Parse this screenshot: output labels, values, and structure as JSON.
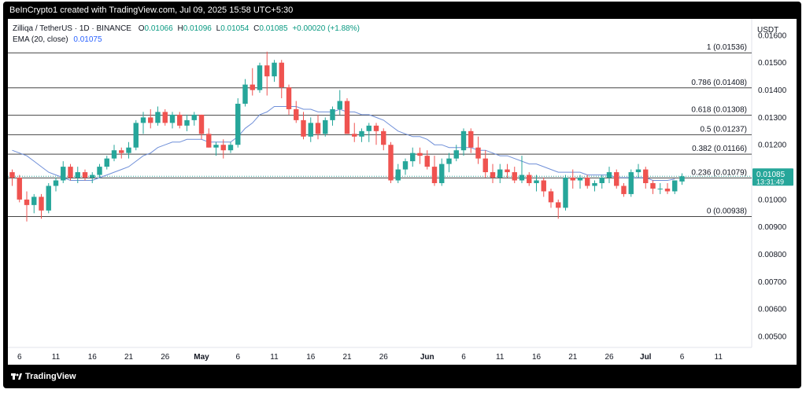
{
  "header": {
    "caption": "BeInCrypto1 created with TradingView.com, Jul 09, 2025 15:58 UTC+5:30"
  },
  "legend": {
    "symbol": "Zilliqa / TetherUS · 1D · BINANCE",
    "open_label": "O",
    "open": "0.01066",
    "high_label": "H",
    "high": "0.01096",
    "low_label": "L",
    "low": "0.01054",
    "close_label": "C",
    "close": "0.01085",
    "change": "+0.00020 (+1.88%)",
    "ema_label": "EMA (20, close)",
    "ema_value": "0.01075"
  },
  "footer": {
    "brand": "TradingView"
  },
  "colors": {
    "up": "#26a69a",
    "down": "#ef5350",
    "ema": "#6f8fd8",
    "price_tag": "#26a69a",
    "fib": "#444444"
  },
  "chart_data": {
    "type": "candlestick",
    "currency": "USDT",
    "ylim": [
      0.0046,
      0.0166
    ],
    "y_ticks": [
      "0.01600",
      "0.01500",
      "0.01400",
      "0.01300",
      "0.01200",
      "0.01100",
      "0.01000",
      "0.00900",
      "0.00800",
      "0.00700",
      "0.00600",
      "0.00500"
    ],
    "y_tick_values": [
      0.016,
      0.015,
      0.014,
      0.013,
      0.012,
      0.011,
      0.01,
      0.009,
      0.008,
      0.007,
      0.006,
      0.005
    ],
    "x_labels": [
      {
        "label": "6",
        "i": 1
      },
      {
        "label": "11",
        "i": 6
      },
      {
        "label": "16",
        "i": 11
      },
      {
        "label": "21",
        "i": 16
      },
      {
        "label": "26",
        "i": 21
      },
      {
        "label": "May",
        "i": 26
      },
      {
        "label": "6",
        "i": 31
      },
      {
        "label": "11",
        "i": 36
      },
      {
        "label": "16",
        "i": 41
      },
      {
        "label": "21",
        "i": 46
      },
      {
        "label": "26",
        "i": 51
      },
      {
        "label": "Jun",
        "i": 57
      },
      {
        "label": "6",
        "i": 62
      },
      {
        "label": "11",
        "i": 67
      },
      {
        "label": "16",
        "i": 72
      },
      {
        "label": "21",
        "i": 77
      },
      {
        "label": "26",
        "i": 82
      },
      {
        "label": "Jul",
        "i": 87
      },
      {
        "label": "6",
        "i": 92
      },
      {
        "label": "11",
        "i": 97
      }
    ],
    "bold_labels": [
      "May",
      "Jun",
      "Jul"
    ],
    "fib_levels": [
      {
        "ratio": "1",
        "price": "0.01536",
        "value": 0.01536
      },
      {
        "ratio": "0.786",
        "price": "0.01408",
        "value": 0.01408
      },
      {
        "ratio": "0.618",
        "price": "0.01308",
        "value": 0.01308
      },
      {
        "ratio": "0.5",
        "price": "0.01237",
        "value": 0.01237
      },
      {
        "ratio": "0.382",
        "price": "0.01166",
        "value": 0.01166
      },
      {
        "ratio": "0.236",
        "price": "0.01079",
        "value": 0.01079
      },
      {
        "ratio": "0",
        "price": "0.00938",
        "value": 0.00938
      }
    ],
    "current_price": {
      "value": 0.01085,
      "label": "0.01085",
      "countdown": "13:31:49"
    },
    "candles": [
      [
        0.011,
        0.0111,
        0.0105,
        0.0108
      ],
      [
        0.0108,
        0.0109,
        0.0099,
        0.01
      ],
      [
        0.01,
        0.0103,
        0.0092,
        0.0098
      ],
      [
        0.0098,
        0.0102,
        0.0095,
        0.0101
      ],
      [
        0.0101,
        0.0102,
        0.0093,
        0.0096
      ],
      [
        0.0096,
        0.0106,
        0.0095,
        0.0105
      ],
      [
        0.0105,
        0.0108,
        0.0103,
        0.0107
      ],
      [
        0.0107,
        0.0114,
        0.0106,
        0.0112
      ],
      [
        0.0112,
        0.0113,
        0.0107,
        0.0108
      ],
      [
        0.0108,
        0.0112,
        0.0106,
        0.011
      ],
      [
        0.011,
        0.0111,
        0.0107,
        0.0108
      ],
      [
        0.0108,
        0.011,
        0.0106,
        0.0109
      ],
      [
        0.0109,
        0.0113,
        0.0108,
        0.0112
      ],
      [
        0.0112,
        0.0116,
        0.0111,
        0.0115
      ],
      [
        0.0115,
        0.012,
        0.0114,
        0.0118
      ],
      [
        0.0118,
        0.0119,
        0.0115,
        0.0117
      ],
      [
        0.0117,
        0.0121,
        0.0115,
        0.0119
      ],
      [
        0.0119,
        0.0129,
        0.0118,
        0.0128
      ],
      [
        0.0128,
        0.0132,
        0.0124,
        0.013
      ],
      [
        0.013,
        0.0133,
        0.0126,
        0.0128
      ],
      [
        0.0128,
        0.0134,
        0.0127,
        0.0132
      ],
      [
        0.0132,
        0.0133,
        0.0127,
        0.0128
      ],
      [
        0.0128,
        0.0132,
        0.0126,
        0.0131
      ],
      [
        0.0131,
        0.0132,
        0.0126,
        0.0127
      ],
      [
        0.0127,
        0.0131,
        0.0125,
        0.0129
      ],
      [
        0.0129,
        0.0132,
        0.0127,
        0.0131
      ],
      [
        0.0131,
        0.0131,
        0.0122,
        0.0124
      ],
      [
        0.0124,
        0.0126,
        0.0119,
        0.0119
      ],
      [
        0.0119,
        0.0121,
        0.0116,
        0.012
      ],
      [
        0.012,
        0.0122,
        0.0115,
        0.0118
      ],
      [
        0.0118,
        0.0121,
        0.0117,
        0.012
      ],
      [
        0.012,
        0.0137,
        0.0119,
        0.0135
      ],
      [
        0.0135,
        0.0144,
        0.0134,
        0.0142
      ],
      [
        0.0142,
        0.0148,
        0.0138,
        0.014
      ],
      [
        0.014,
        0.015,
        0.0139,
        0.0149
      ],
      [
        0.0149,
        0.0154,
        0.0138,
        0.0145
      ],
      [
        0.0145,
        0.0151,
        0.0143,
        0.015
      ],
      [
        0.015,
        0.0151,
        0.0137,
        0.0141
      ],
      [
        0.0141,
        0.0142,
        0.0131,
        0.0133
      ],
      [
        0.0133,
        0.0136,
        0.0128,
        0.0129
      ],
      [
        0.0129,
        0.0132,
        0.0122,
        0.0123
      ],
      [
        0.0123,
        0.013,
        0.0121,
        0.0128
      ],
      [
        0.0128,
        0.0131,
        0.0122,
        0.0124
      ],
      [
        0.0124,
        0.013,
        0.0123,
        0.0129
      ],
      [
        0.0129,
        0.0134,
        0.0127,
        0.0133
      ],
      [
        0.0133,
        0.014,
        0.0131,
        0.0136
      ],
      [
        0.0136,
        0.0137,
        0.0125,
        0.0124
      ],
      [
        0.0124,
        0.0128,
        0.0121,
        0.0123
      ],
      [
        0.0123,
        0.0126,
        0.0121,
        0.0125
      ],
      [
        0.0125,
        0.0128,
        0.0121,
        0.0127
      ],
      [
        0.0127,
        0.0128,
        0.012,
        0.0125
      ],
      [
        0.0125,
        0.0126,
        0.0118,
        0.012
      ],
      [
        0.012,
        0.0121,
        0.0106,
        0.0107
      ],
      [
        0.0107,
        0.0113,
        0.0106,
        0.0111
      ],
      [
        0.0111,
        0.0115,
        0.0109,
        0.0114
      ],
      [
        0.0114,
        0.0119,
        0.0112,
        0.0117
      ],
      [
        0.0117,
        0.0119,
        0.0113,
        0.0116
      ],
      [
        0.0116,
        0.0118,
        0.0111,
        0.0112
      ],
      [
        0.0112,
        0.0116,
        0.0105,
        0.0106
      ],
      [
        0.0106,
        0.0115,
        0.0105,
        0.0113
      ],
      [
        0.0113,
        0.0117,
        0.011,
        0.0115
      ],
      [
        0.0115,
        0.012,
        0.0114,
        0.0118
      ],
      [
        0.0118,
        0.0126,
        0.0116,
        0.0125
      ],
      [
        0.0125,
        0.0126,
        0.0117,
        0.0119
      ],
      [
        0.0119,
        0.0123,
        0.0113,
        0.0115
      ],
      [
        0.0115,
        0.0118,
        0.0108,
        0.011
      ],
      [
        0.011,
        0.0113,
        0.0106,
        0.0108
      ],
      [
        0.0108,
        0.0113,
        0.0106,
        0.0111
      ],
      [
        0.0111,
        0.0113,
        0.0108,
        0.011
      ],
      [
        0.011,
        0.0112,
        0.0106,
        0.0107
      ],
      [
        0.0107,
        0.0116,
        0.0106,
        0.0109
      ],
      [
        0.0109,
        0.011,
        0.0105,
        0.0106
      ],
      [
        0.0106,
        0.0109,
        0.0103,
        0.0107
      ],
      [
        0.0107,
        0.0108,
        0.0101,
        0.0103
      ],
      [
        0.0103,
        0.0104,
        0.0097,
        0.0099
      ],
      [
        0.0099,
        0.01,
        0.0093,
        0.0097
      ],
      [
        0.0097,
        0.0109,
        0.0096,
        0.0108
      ],
      [
        0.0108,
        0.0111,
        0.0104,
        0.0107
      ],
      [
        0.0107,
        0.0109,
        0.0104,
        0.0108
      ],
      [
        0.0108,
        0.0109,
        0.0104,
        0.0105
      ],
      [
        0.0105,
        0.0107,
        0.0103,
        0.0106
      ],
      [
        0.0106,
        0.0109,
        0.0104,
        0.0108
      ],
      [
        0.0108,
        0.0112,
        0.0106,
        0.011
      ],
      [
        0.011,
        0.0111,
        0.0104,
        0.0105
      ],
      [
        0.0105,
        0.0106,
        0.0101,
        0.0102
      ],
      [
        0.0102,
        0.0111,
        0.0101,
        0.011
      ],
      [
        0.011,
        0.0113,
        0.0108,
        0.0111
      ],
      [
        0.0111,
        0.0112,
        0.0104,
        0.0106
      ],
      [
        0.0106,
        0.0107,
        0.0102,
        0.0104
      ],
      [
        0.0104,
        0.0106,
        0.0102,
        0.0104
      ],
      [
        0.0104,
        0.0106,
        0.0102,
        0.0103
      ],
      [
        0.0103,
        0.0107,
        0.0102,
        0.0107
      ],
      [
        0.01066,
        0.01096,
        0.01054,
        0.01085
      ]
    ],
    "ema": [
      0.0118,
      0.0117,
      0.0116,
      0.0114,
      0.0112,
      0.011,
      0.0109,
      0.0108,
      0.0107,
      0.0107,
      0.0107,
      0.0107,
      0.0108,
      0.0109,
      0.011,
      0.0111,
      0.0112,
      0.0114,
      0.0116,
      0.0117,
      0.0119,
      0.012,
      0.0121,
      0.0121,
      0.0122,
      0.0122,
      0.0122,
      0.0121,
      0.0121,
      0.0121,
      0.0121,
      0.0123,
      0.0126,
      0.0128,
      0.0131,
      0.0132,
      0.0134,
      0.0134,
      0.0134,
      0.0134,
      0.0133,
      0.0133,
      0.0132,
      0.0132,
      0.0132,
      0.0133,
      0.0132,
      0.0132,
      0.0131,
      0.0131,
      0.013,
      0.0129,
      0.0127,
      0.0125,
      0.0124,
      0.0123,
      0.0123,
      0.0122,
      0.012,
      0.012,
      0.0119,
      0.0119,
      0.0119,
      0.0119,
      0.0118,
      0.0118,
      0.0117,
      0.0116,
      0.0116,
      0.0115,
      0.0114,
      0.0113,
      0.0113,
      0.0112,
      0.0111,
      0.011,
      0.011,
      0.011,
      0.011,
      0.0109,
      0.0109,
      0.0109,
      0.0109,
      0.0108,
      0.0108,
      0.0108,
      0.0108,
      0.0108,
      0.0107,
      0.0107,
      0.0107,
      0.01075
    ]
  }
}
